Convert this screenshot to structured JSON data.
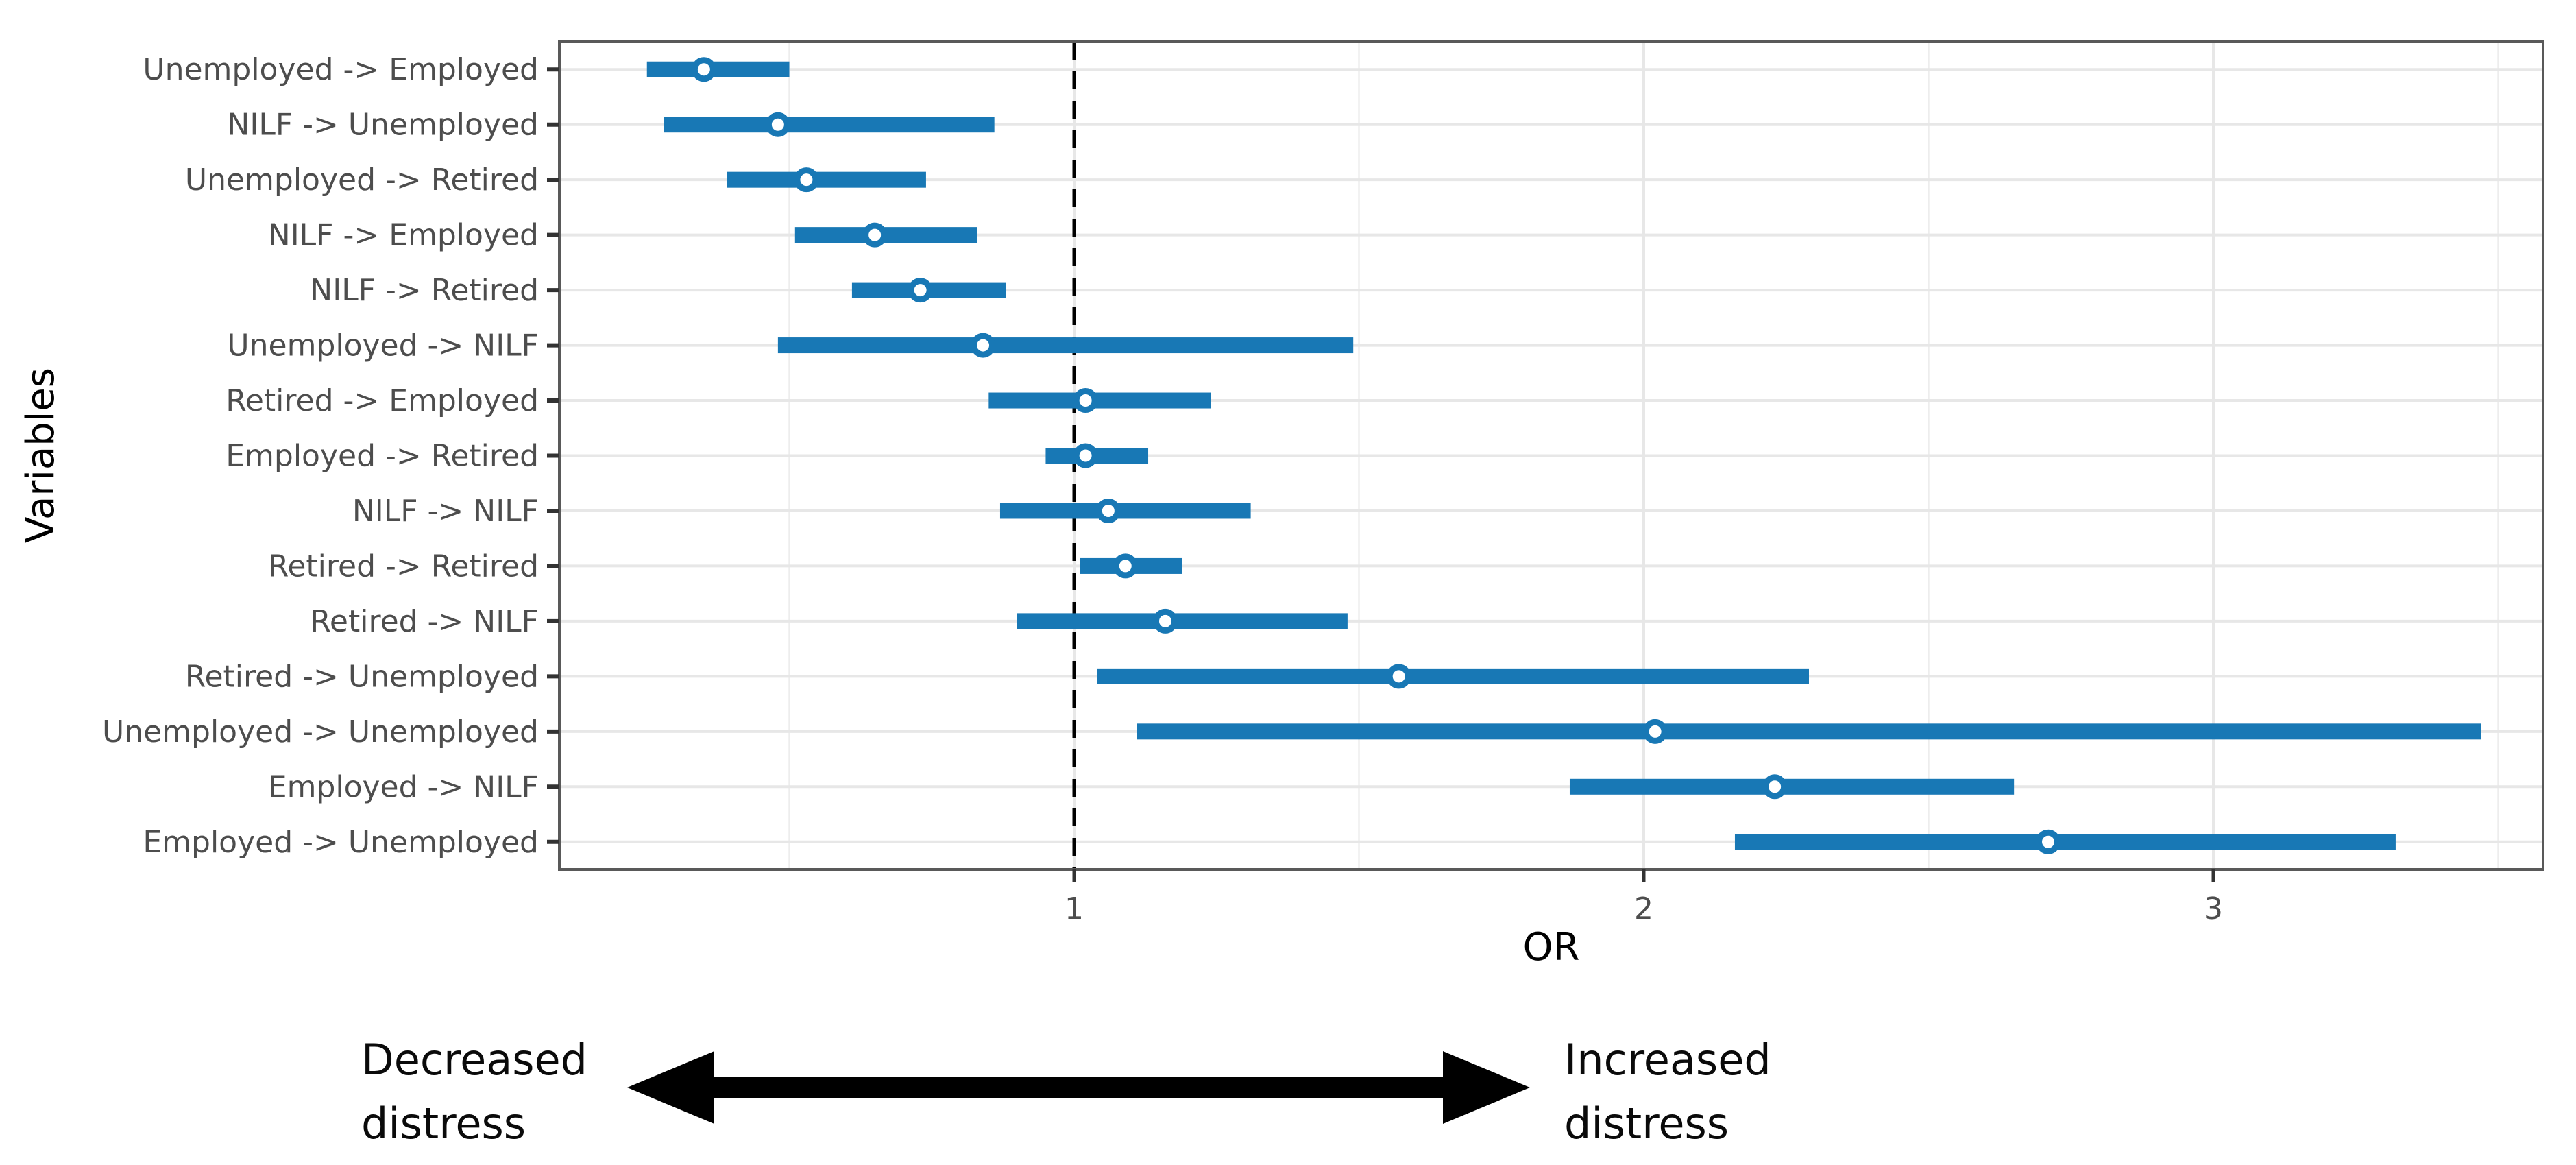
{
  "chart_data": {
    "type": "scatter",
    "subtype": "forest-plot-odds-ratios-with-ci",
    "title": "",
    "xlabel": "OR",
    "ylabel": "Variables",
    "xlim": [
      0.1,
      3.58
    ],
    "x_ticks": [
      1,
      2,
      3
    ],
    "x_major_gridlines": [
      1,
      2,
      3
    ],
    "x_minor_gridlines": [
      0.5,
      1.5,
      2.5,
      3.5
    ],
    "reference_line_x": 1,
    "grid": true,
    "legend": false,
    "rows": [
      {
        "label": "Unemployed -> Employed",
        "or": 0.35,
        "ci_low": 0.25,
        "ci_high": 0.5
      },
      {
        "label": "NILF -> Unemployed",
        "or": 0.48,
        "ci_low": 0.28,
        "ci_high": 0.86
      },
      {
        "label": "Unemployed -> Retired",
        "or": 0.53,
        "ci_low": 0.39,
        "ci_high": 0.74
      },
      {
        "label": "NILF -> Employed",
        "or": 0.65,
        "ci_low": 0.51,
        "ci_high": 0.83
      },
      {
        "label": "NILF -> Retired",
        "or": 0.73,
        "ci_low": 0.61,
        "ci_high": 0.88
      },
      {
        "label": "Unemployed -> NILF",
        "or": 0.84,
        "ci_low": 0.48,
        "ci_high": 1.49
      },
      {
        "label": "Retired -> Employed",
        "or": 1.02,
        "ci_low": 0.85,
        "ci_high": 1.24
      },
      {
        "label": "Employed -> Retired",
        "or": 1.02,
        "ci_low": 0.95,
        "ci_high": 1.13
      },
      {
        "label": "NILF -> NILF",
        "or": 1.06,
        "ci_low": 0.87,
        "ci_high": 1.31
      },
      {
        "label": "Retired -> Retired",
        "or": 1.09,
        "ci_low": 1.01,
        "ci_high": 1.19
      },
      {
        "label": "Retired -> NILF",
        "or": 1.16,
        "ci_low": 0.9,
        "ci_high": 1.48
      },
      {
        "label": "Retired -> Unemployed",
        "or": 1.57,
        "ci_low": 1.04,
        "ci_high": 2.29
      },
      {
        "label": "Unemployed -> Unemployed",
        "or": 2.02,
        "ci_low": 1.11,
        "ci_high": 3.47
      },
      {
        "label": "Employed -> NILF",
        "or": 2.23,
        "ci_low": 1.87,
        "ci_high": 2.65
      },
      {
        "label": "Employed -> Unemployed",
        "or": 2.71,
        "ci_low": 2.16,
        "ci_high": 3.32
      }
    ]
  },
  "annotation": {
    "left_line1": "Decreased",
    "left_line2": "distress",
    "right_line1": "Increased",
    "right_line2": "distress"
  },
  "colors": {
    "interval": "#1878b5",
    "marker_fill": "#ffffff",
    "marker_stroke": "#1878b5",
    "major_grid": "#e7e7e7",
    "minor_grid": "#ededed",
    "panel_border": "#595959",
    "axis_text": "#4d4d4d",
    "tick_mark": "#333333",
    "axis_title": "#000000",
    "reference_line": "#000000",
    "arrow": "#000000"
  }
}
